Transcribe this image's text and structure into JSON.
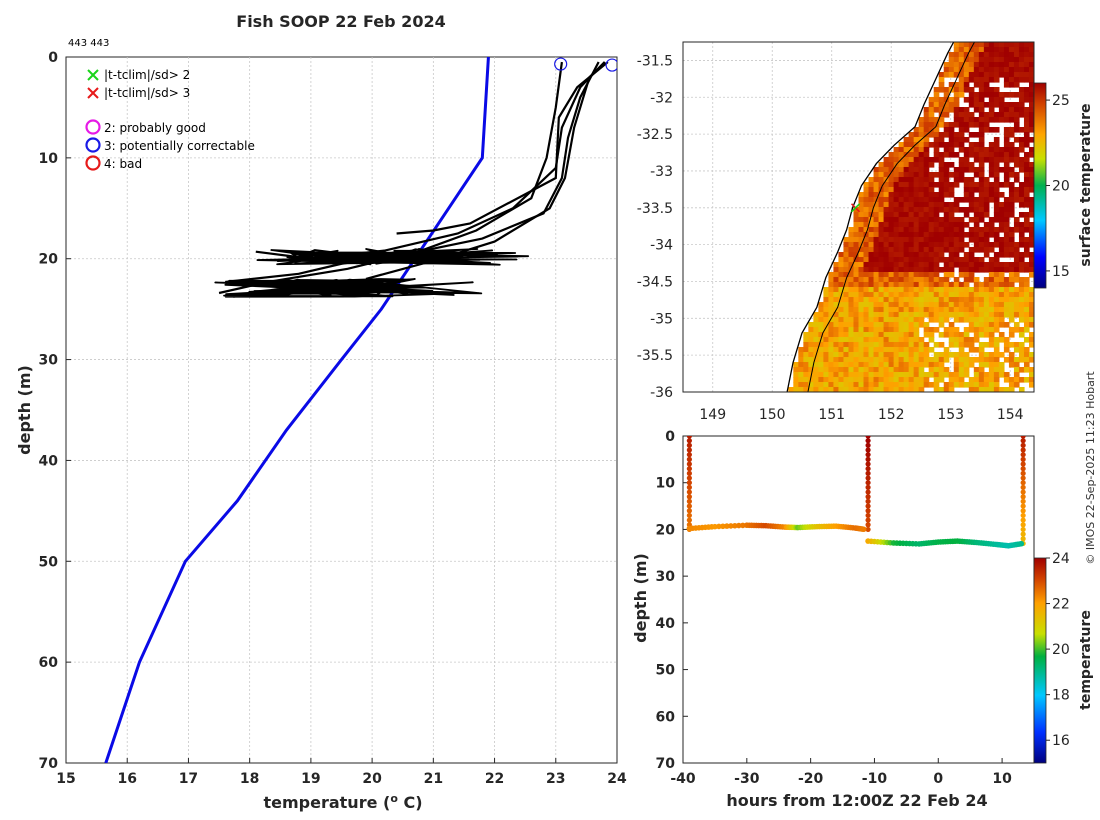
{
  "title": "Fish SOOP 22 Feb 2024",
  "id_label": "443 443",
  "credit": "© IMOS 22-Sep-2025 11:23 Hobart",
  "colors": {
    "climatology": "#0a0ae6",
    "profile": "#000000"
  },
  "legend": {
    "cross_items": [
      {
        "label": "|t-tclim|/sd> 2",
        "color": "#1ad41a"
      },
      {
        "label": "|t-tclim|/sd> 3",
        "color": "#e61a1a"
      }
    ],
    "circle_items": [
      {
        "label": "2: probably good",
        "color": "#e61ae6"
      },
      {
        "label": "3: potentially correctable",
        "color": "#1a1ae6"
      },
      {
        "label": "4: bad",
        "color": "#e61a1a"
      }
    ]
  },
  "chart_data": [
    {
      "type": "line",
      "name": "profile",
      "xlabel": "temperature (",
      "xlabel_sup": "o",
      "xlabel_end": " C)",
      "ylabel": "depth (m)",
      "xlim": [
        15,
        24
      ],
      "ylim": [
        0,
        70
      ],
      "xticks": [
        "15",
        "16",
        "17",
        "18",
        "19",
        "20",
        "21",
        "22",
        "23",
        "24"
      ],
      "yticks": [
        "0",
        "10",
        "20",
        "30",
        "40",
        "50",
        "60",
        "70"
      ],
      "climatology": {
        "x": [
          21.9,
          21.85,
          21.8,
          21.8,
          21.25,
          20.7,
          20.15,
          19.5,
          18.6,
          17.8,
          16.95,
          16.2,
          15.65
        ],
        "y": [
          0,
          5,
          10,
          10,
          15,
          20,
          25,
          30,
          37,
          44,
          50,
          60,
          70
        ]
      },
      "profiles": [
        {
          "x": [
            23.8,
            23.4,
            23.1,
            23.0,
            22.3,
            21.4,
            20.2,
            19.0,
            18.1
          ],
          "y": [
            0.5,
            3,
            7,
            11,
            15,
            17.5,
            19.2,
            20.0,
            19.3
          ]
        },
        {
          "x": [
            23.7,
            23.4,
            23.2,
            23.1,
            22.8,
            21.8,
            20.6,
            19.5,
            18.8,
            17.6
          ],
          "y": [
            0.5,
            4,
            8,
            12,
            15.5,
            18.0,
            19.5,
            20.5,
            21.5,
            22.3
          ]
        },
        {
          "x": [
            23.8,
            23.55,
            23.3,
            23.15,
            22.9,
            22.0,
            21.0,
            19.9
          ],
          "y": [
            0.5,
            2,
            7,
            12,
            15,
            18.3,
            20.2,
            22.0
          ]
        },
        {
          "x": [
            23.1,
            23.0,
            22.85,
            22.6,
            21.7,
            20.8,
            19.6,
            18.3,
            17.5
          ],
          "y": [
            0.5,
            5,
            10,
            14,
            17.2,
            19.2,
            21.0,
            22.3,
            23.4
          ]
        },
        {
          "x": [
            23.85,
            23.35,
            23.05,
            23.0,
            21.6,
            21.0,
            20.4
          ],
          "y": [
            0.5,
            3,
            6,
            12,
            16.5,
            17.2,
            17.5
          ]
        }
      ],
      "scribbles": [
        {
          "x_range": [
            18.1,
            23.0
          ],
          "y_range": [
            19.0,
            20.6
          ]
        },
        {
          "x_range": [
            17.4,
            22.2
          ],
          "y_range": [
            22.0,
            23.8
          ]
        }
      ],
      "flag_circles": [
        {
          "x": 23.08,
          "y": 0.7,
          "flag": 3
        },
        {
          "x": 23.92,
          "y": 0.8,
          "flag": 3
        }
      ]
    },
    {
      "type": "heatmap",
      "name": "map",
      "colorbar_label": "surface temperature",
      "colorbar_ticks": [
        "15",
        "20",
        "25"
      ],
      "clim": [
        14,
        26
      ],
      "xlim": [
        148.5,
        154.4
      ],
      "ylim": [
        -36.0,
        -31.25
      ],
      "xticks": [
        "149",
        "150",
        "151",
        "152",
        "153",
        "154"
      ],
      "yticks": [
        "-31.5",
        "-32",
        "-32.5",
        "-33",
        "-33.5",
        "-34",
        "-34.5",
        "-35",
        "-35.5",
        "-36"
      ],
      "marker": {
        "lon": 151.4,
        "lat": -33.5
      }
    },
    {
      "type": "scatter",
      "name": "section",
      "xlabel": "hours from 12:00Z 22 Feb 24",
      "ylabel": "depth (m)",
      "colorbar_label": "temperature",
      "colorbar_ticks": [
        "16",
        "18",
        "20",
        "22",
        "24"
      ],
      "clim": [
        15,
        24
      ],
      "xlim": [
        -40,
        15
      ],
      "ylim": [
        0,
        70
      ],
      "xticks": [
        "-40",
        "-30",
        "-20",
        "-10",
        "0",
        "10"
      ],
      "yticks": [
        "0",
        "10",
        "20",
        "30",
        "40",
        "50",
        "60",
        "70"
      ],
      "casts": [
        {
          "x": -39,
          "temp_surface": 23.6,
          "temp_bottom": 22.5,
          "depth_max": 20
        },
        {
          "x": -11,
          "temp_surface": 24.0,
          "temp_bottom": 23.0,
          "depth_max": 20
        },
        {
          "x": 13.3,
          "temp_surface": 23.6,
          "temp_bottom": 21.5,
          "depth_max": 23
        }
      ],
      "tow_segments": [
        {
          "x": [
            -39,
            -35,
            -30,
            -27,
            -24,
            -22,
            -19,
            -16,
            -13,
            -11.5
          ],
          "y": [
            19.8,
            19.4,
            19.1,
            19.2,
            19.5,
            19.6,
            19.4,
            19.3,
            19.7,
            20.0
          ],
          "t": [
            22.3,
            22.1,
            22.5,
            23.0,
            22.3,
            20.2,
            21.3,
            22.0,
            22.6,
            22.4
          ]
        },
        {
          "x": [
            -11,
            -7,
            -3,
            0,
            3,
            6,
            9,
            11,
            13.3
          ],
          "y": [
            22.5,
            22.9,
            23.1,
            22.7,
            22.5,
            22.8,
            23.2,
            23.5,
            23.0
          ],
          "t": [
            21.8,
            19.8,
            19.3,
            19.6,
            19.7,
            19.2,
            18.9,
            18.7,
            19.0
          ]
        }
      ]
    }
  ]
}
